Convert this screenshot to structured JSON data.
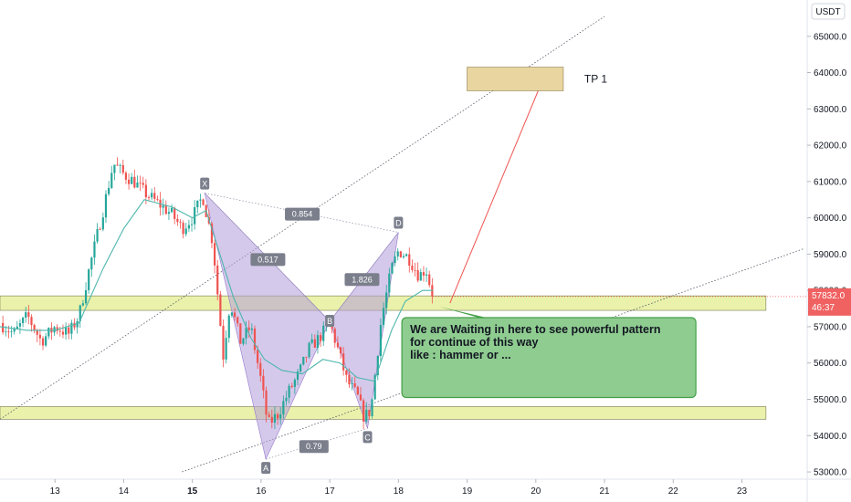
{
  "colors": {
    "up": "#26a69a",
    "down": "#ef5350",
    "ma": "#4db6ac",
    "harmonic_fill": "#b39ddb",
    "zone_fill": "#e6ee9c",
    "tp_fill": "#e8d5a0",
    "note_fill": "#8fcc90",
    "note_border": "#43a047",
    "arrow_red": "#ef5350",
    "price_badge": "#f06262"
  },
  "chart_data": {
    "type": "candlestick",
    "symbol_unit": "USDT",
    "y_ticks": [
      "53000.0",
      "54000.0",
      "55000.0",
      "56000.0",
      "57000.0",
      "58000.0",
      "59000.0",
      "60000.0",
      "61000.0",
      "62000.0",
      "63000.0",
      "64000.0",
      "65000.0"
    ],
    "x_ticks": [
      {
        "label": "13",
        "day": 13,
        "bold": false
      },
      {
        "label": "14",
        "day": 14,
        "bold": false
      },
      {
        "label": "15",
        "day": 15,
        "bold": true
      },
      {
        "label": "16",
        "day": 16,
        "bold": false
      },
      {
        "label": "17",
        "day": 17,
        "bold": false
      },
      {
        "label": "18",
        "day": 18,
        "bold": false
      },
      {
        "label": "19",
        "day": 19,
        "bold": false
      },
      {
        "label": "20",
        "day": 20,
        "bold": false
      },
      {
        "label": "21",
        "day": 21,
        "bold": false
      },
      {
        "label": "22",
        "day": 22,
        "bold": false
      },
      {
        "label": "23",
        "day": 23,
        "bold": false
      }
    ],
    "x_range": [
      12.2,
      23.95
    ],
    "y_range": [
      52800,
      66000
    ],
    "current_price": "57832.0",
    "countdown": "46:37",
    "last_price_value": 57832,
    "close_path": [
      [
        12.2,
        57100
      ],
      [
        12.4,
        56800
      ],
      [
        12.6,
        57300
      ],
      [
        12.8,
        56600
      ],
      [
        13.0,
        57000
      ],
      [
        13.2,
        56800
      ],
      [
        13.35,
        57300
      ],
      [
        13.5,
        58600
      ],
      [
        13.7,
        60200
      ],
      [
        13.85,
        61500
      ],
      [
        14.0,
        61200
      ],
      [
        14.15,
        61000
      ],
      [
        14.3,
        60700
      ],
      [
        14.5,
        60400
      ],
      [
        14.7,
        60100
      ],
      [
        14.85,
        59700
      ],
      [
        15.0,
        60000
      ],
      [
        15.15,
        60600
      ],
      [
        15.3,
        59300
      ],
      [
        15.45,
        56200
      ],
      [
        15.55,
        57700
      ],
      [
        15.7,
        56600
      ],
      [
        15.85,
        57000
      ],
      [
        16.0,
        55500
      ],
      [
        16.1,
        54300
      ],
      [
        16.25,
        54600
      ],
      [
        16.4,
        55200
      ],
      [
        16.55,
        55700
      ],
      [
        16.7,
        56400
      ],
      [
        16.85,
        56700
      ],
      [
        17.0,
        57100
      ],
      [
        17.1,
        56500
      ],
      [
        17.25,
        55500
      ],
      [
        17.4,
        55100
      ],
      [
        17.5,
        54500
      ],
      [
        17.6,
        54700
      ],
      [
        17.75,
        57200
      ],
      [
        17.9,
        58600
      ],
      [
        18.0,
        59100
      ],
      [
        18.15,
        58900
      ],
      [
        18.3,
        58400
      ],
      [
        18.4,
        58600
      ],
      [
        18.5,
        57832
      ]
    ],
    "ma_path": [
      [
        12.2,
        57000
      ],
      [
        12.6,
        56900
      ],
      [
        13.0,
        56900
      ],
      [
        13.35,
        57100
      ],
      [
        13.7,
        58600
      ],
      [
        14.0,
        59700
      ],
      [
        14.3,
        60500
      ],
      [
        14.7,
        60300
      ],
      [
        15.0,
        60000
      ],
      [
        15.2,
        60200
      ],
      [
        15.35,
        59300
      ],
      [
        15.6,
        57800
      ],
      [
        15.85,
        56700
      ],
      [
        16.05,
        56100
      ],
      [
        16.3,
        55800
      ],
      [
        16.6,
        55700
      ],
      [
        16.9,
        56100
      ],
      [
        17.15,
        56000
      ],
      [
        17.4,
        55600
      ],
      [
        17.65,
        55500
      ],
      [
        17.9,
        56900
      ],
      [
        18.1,
        57700
      ],
      [
        18.35,
        58000
      ],
      [
        18.5,
        58000
      ]
    ],
    "harmonic": {
      "points": [
        {
          "id": "X",
          "day": 15.18,
          "price": 60680,
          "place": "above"
        },
        {
          "id": "A",
          "day": 16.07,
          "price": 53350,
          "place": "below"
        },
        {
          "id": "B",
          "day": 17.0,
          "price": 57150,
          "place": "on"
        },
        {
          "id": "C",
          "day": 17.55,
          "price": 54200,
          "place": "below"
        },
        {
          "id": "D",
          "day": 18.0,
          "price": 59600,
          "place": "above"
        }
      ],
      "ratios": [
        {
          "text": "0.517",
          "day": 16.1,
          "price": 58850
        },
        {
          "text": "1.826",
          "day": 17.47,
          "price": 58300
        },
        {
          "text": "0.854",
          "day": 16.6,
          "price": 60100
        },
        {
          "text": "0.79",
          "day": 16.77,
          "price": 53700
        }
      ]
    },
    "zones": [
      {
        "from_day": 12.2,
        "to_day": 23.35,
        "low": 57450,
        "high": 57850
      },
      {
        "from_day": 12.2,
        "to_day": 23.35,
        "low": 54450,
        "high": 54800
      }
    ],
    "tp_box": {
      "from_day": 19.0,
      "to_day": 20.4,
      "low": 63500,
      "high": 64150
    },
    "trendlines": [
      {
        "from": [
          14.85,
          53000
        ],
        "to": [
          23.9,
          59150
        ]
      },
      {
        "from": [
          12.2,
          54450
        ],
        "to": [
          21.0,
          65550
        ]
      }
    ],
    "target_arrow": {
      "from": [
        18.75,
        57650
      ],
      "to": [
        20.1,
        63800
      ]
    },
    "green_arrow": {
      "from": [
        18.6,
        57550
      ],
      "to": [
        20.15,
        56800
      ]
    }
  },
  "annotations": {
    "tp_label": "TP 1",
    "note_lines": [
      "We are Waiting in here to see powerful pattern",
      "for continue of this way",
      "like : hammer or ..."
    ]
  }
}
